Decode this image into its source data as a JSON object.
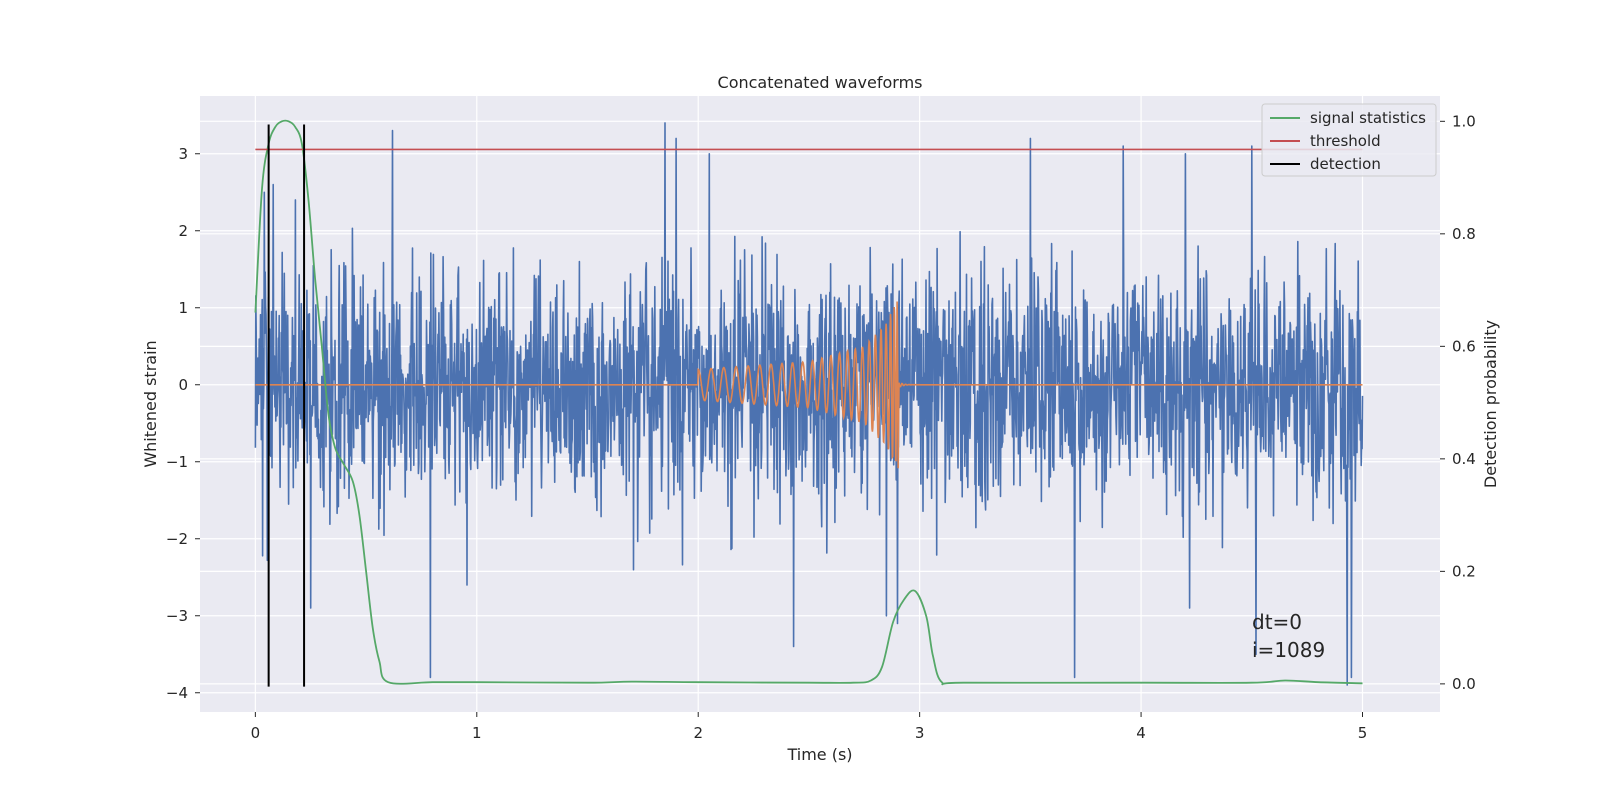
{
  "chart_data": {
    "type": "line",
    "title": "Concatenated waveforms",
    "xlabel": "Time (s)",
    "ylabel": "Whitened strain",
    "y2label": "Detection probability",
    "xlim": [
      -0.25,
      5.35
    ],
    "ylim": [
      -4.25,
      3.75
    ],
    "y2lim": [
      -0.05,
      1.045
    ],
    "xticks": [
      0,
      1,
      2,
      3,
      4,
      5
    ],
    "xtick_labels": [
      "0",
      "1",
      "2",
      "3",
      "4",
      "5"
    ],
    "yticks": [
      -4,
      -3,
      -2,
      -1,
      0,
      1,
      2,
      3
    ],
    "ytick_labels": [
      "−4",
      "−3",
      "−2",
      "−1",
      "0",
      "1",
      "2",
      "3"
    ],
    "y2ticks": [
      0.0,
      0.2,
      0.4,
      0.6,
      0.8,
      1.0
    ],
    "y2tick_labels": [
      "0.0",
      "0.2",
      "0.4",
      "0.6",
      "0.8",
      "1.0"
    ],
    "grid": true,
    "legend_position": "top-right",
    "series": [
      {
        "name": "",
        "kind": "noise",
        "color": "#4c72b0",
        "axis": "left",
        "x_range": [
          0,
          5
        ],
        "typical_abs_max": 1.9,
        "spikes": [
          {
            "x": 0.04,
            "y": 2.5
          },
          {
            "x": 0.08,
            "y": 2.6
          },
          {
            "x": 0.18,
            "y": 2.4
          },
          {
            "x": 0.25,
            "y": -2.9
          },
          {
            "x": 0.62,
            "y": 3.3
          },
          {
            "x": 0.79,
            "y": -3.8
          },
          {
            "x": 1.85,
            "y": 3.4
          },
          {
            "x": 1.9,
            "y": 3.2
          },
          {
            "x": 2.05,
            "y": 3.0
          },
          {
            "x": 2.43,
            "y": -3.4
          },
          {
            "x": 2.85,
            "y": -3.0
          },
          {
            "x": 2.9,
            "y": -3.1
          },
          {
            "x": 3.5,
            "y": 3.2
          },
          {
            "x": 3.7,
            "y": -3.8
          },
          {
            "x": 3.92,
            "y": 3.1
          },
          {
            "x": 4.2,
            "y": 3.0
          },
          {
            "x": 4.22,
            "y": -2.9
          },
          {
            "x": 4.5,
            "y": 3.1
          },
          {
            "x": 4.52,
            "y": -3.5
          },
          {
            "x": 4.93,
            "y": -3.9
          },
          {
            "x": 4.95,
            "y": -3.8
          }
        ]
      },
      {
        "name": "",
        "kind": "chirp",
        "color": "#dd8452",
        "axis": "left",
        "x": [
          0,
          2.0,
          2.5,
          2.75,
          2.85,
          2.88,
          2.9,
          5.0
        ],
        "y_envelope": [
          0,
          0.2,
          0.3,
          0.5,
          0.8,
          1.0,
          1.1,
          0
        ]
      },
      {
        "name": "signal statistics",
        "color": "#55a868",
        "axis": "right",
        "x": [
          0,
          0.03,
          0.06,
          0.09,
          0.12,
          0.15,
          0.18,
          0.21,
          0.24,
          0.27,
          0.3,
          0.33,
          0.36,
          0.4,
          0.44,
          0.47,
          0.5,
          0.53,
          0.56,
          0.6,
          0.8,
          1.0,
          1.5,
          1.7,
          2.0,
          2.5,
          2.7,
          2.78,
          2.83,
          2.88,
          2.93,
          2.98,
          3.03,
          3.06,
          3.1,
          3.2,
          4.0,
          4.5,
          4.65,
          4.8,
          5.0
        ],
        "y": [
          0.66,
          0.88,
          0.96,
          0.99,
          1.0,
          1.0,
          0.99,
          0.96,
          0.86,
          0.72,
          0.6,
          0.48,
          0.42,
          0.39,
          0.36,
          0.3,
          0.2,
          0.1,
          0.04,
          0.003,
          0.003,
          0.003,
          0.002,
          0.004,
          0.003,
          0.002,
          0.002,
          0.006,
          0.03,
          0.11,
          0.15,
          0.165,
          0.12,
          0.05,
          0.003,
          0.002,
          0.002,
          0.002,
          0.006,
          0.003,
          0.001
        ]
      },
      {
        "name": "threshold",
        "color": "#c44e52",
        "axis": "right",
        "x": [
          0,
          5
        ],
        "y": [
          0.95,
          0.95
        ]
      },
      {
        "name": "detection",
        "color": "#000000",
        "axis": "left",
        "vlines": [
          0.06,
          0.22
        ],
        "y_range": [
          -3.92,
          3.38
        ]
      }
    ],
    "annotation": {
      "line1": "dt=0",
      "line2": "i=1089",
      "x": 4.5,
      "y": -3.35
    }
  }
}
